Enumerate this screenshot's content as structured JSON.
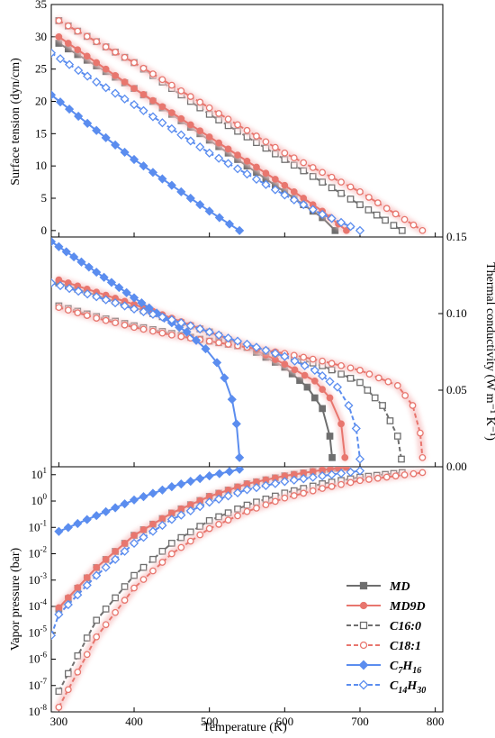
{
  "chart_data": [
    {
      "type": "line",
      "ylabel": "Surface tension (dyn/cm)",
      "ylim": [
        -1,
        35
      ],
      "xlim": [
        290,
        810
      ],
      "yticks": [
        "0",
        "5",
        "10",
        "15",
        "20",
        "25",
        "30",
        "35"
      ],
      "series": [
        {
          "name": "MD",
          "x": [
            300,
            400,
            500,
            600,
            650,
            667
          ],
          "y": [
            29,
            22,
            14,
            6,
            2,
            0
          ]
        },
        {
          "name": "MD9D",
          "x": [
            300,
            400,
            500,
            600,
            650,
            682
          ],
          "y": [
            30,
            22,
            14.5,
            7,
            3,
            0
          ]
        },
        {
          "name": "C16:0",
          "x": [
            300,
            400,
            500,
            600,
            700,
            756
          ],
          "y": [
            32.5,
            26,
            18,
            11,
            4,
            0
          ]
        },
        {
          "name": "C18:1",
          "x": [
            300,
            400,
            500,
            600,
            700,
            783
          ],
          "y": [
            32.5,
            26,
            19,
            12,
            6,
            0
          ]
        },
        {
          "name": "C7H16",
          "x": [
            290,
            350,
            400,
            450,
            500,
            540
          ],
          "y": [
            21,
            15.5,
            11,
            7,
            3,
            0
          ]
        },
        {
          "name": "C14H30",
          "x": [
            290,
            350,
            400,
            500,
            600,
            650,
            700
          ],
          "y": [
            27.5,
            23,
            19.5,
            12,
            5.5,
            2.5,
            0
          ]
        }
      ]
    },
    {
      "type": "line",
      "ylabel": "Thermal conductivity (W m⁻¹ K⁻¹)",
      "ylim": [
        0.0,
        0.15
      ],
      "xlim": [
        290,
        810
      ],
      "yticks": [
        "0.00",
        "0.05",
        "0.10",
        "0.15"
      ],
      "series": [
        {
          "name": "MD",
          "x": [
            300,
            350,
            400,
            450,
            500,
            550,
            600,
            630,
            650,
            660,
            663
          ],
          "y": [
            0.12,
            0.112,
            0.104,
            0.096,
            0.088,
            0.078,
            0.065,
            0.052,
            0.038,
            0.02,
            0.006
          ]
        },
        {
          "name": "MD9D",
          "x": [
            300,
            350,
            400,
            450,
            500,
            550,
            600,
            640,
            660,
            675,
            680
          ],
          "y": [
            0.122,
            0.114,
            0.106,
            0.097,
            0.088,
            0.079,
            0.067,
            0.056,
            0.045,
            0.028,
            0.006
          ]
        },
        {
          "name": "C16:0",
          "x": [
            300,
            350,
            400,
            450,
            500,
            550,
            600,
            650,
            700,
            730,
            750,
            755
          ],
          "y": [
            0.105,
            0.098,
            0.092,
            0.087,
            0.082,
            0.078,
            0.073,
            0.066,
            0.055,
            0.04,
            0.02,
            0.005
          ]
        },
        {
          "name": "C18:1",
          "x": [
            300,
            350,
            400,
            450,
            500,
            550,
            600,
            650,
            700,
            750,
            770,
            780,
            783
          ],
          "y": [
            0.104,
            0.097,
            0.091,
            0.086,
            0.082,
            0.078,
            0.074,
            0.069,
            0.063,
            0.053,
            0.04,
            0.022,
            0.006
          ]
        },
        {
          "name": "C7H16",
          "x": [
            290,
            320,
            350,
            380,
            410,
            440,
            470,
            495,
            510,
            520,
            530,
            536,
            540
          ],
          "y": [
            0.147,
            0.137,
            0.127,
            0.117,
            0.107,
            0.097,
            0.088,
            0.077,
            0.068,
            0.058,
            0.044,
            0.028,
            0.006
          ]
        },
        {
          "name": "C14H30",
          "x": [
            290,
            350,
            400,
            450,
            500,
            550,
            600,
            640,
            670,
            685,
            695,
            700
          ],
          "y": [
            0.12,
            0.111,
            0.103,
            0.096,
            0.088,
            0.08,
            0.072,
            0.063,
            0.052,
            0.04,
            0.025,
            0.005
          ]
        }
      ]
    },
    {
      "type": "line",
      "ylabel": "Vapor pressure (bar)",
      "xlabel": "Temperature (K)",
      "ylim_log10": [
        -8,
        1.3
      ],
      "xlim": [
        290,
        810
      ],
      "xticks": [
        "300",
        "400",
        "500",
        "600",
        "700",
        "800"
      ],
      "series": [
        {
          "name": "MD",
          "x": [
            300,
            350,
            400,
            450,
            500,
            550,
            600,
            650,
            680
          ],
          "y": [
            8e-05,
            0.003,
            0.05,
            0.35,
            1.5,
            4.5,
            9,
            15,
            19
          ]
        },
        {
          "name": "MD9D",
          "x": [
            300,
            350,
            400,
            450,
            500,
            550,
            600,
            650,
            682
          ],
          "y": [
            9e-05,
            0.003,
            0.05,
            0.35,
            1.5,
            4.5,
            9,
            15,
            19
          ]
        },
        {
          "name": "C16:0",
          "x": [
            300,
            350,
            400,
            450,
            500,
            550,
            600,
            650,
            700,
            756
          ],
          "y": [
            6e-08,
            3e-05,
            0.0015,
            0.025,
            0.18,
            0.7,
            2,
            4.5,
            8,
            12
          ]
        },
        {
          "name": "C18:1",
          "x": [
            300,
            350,
            400,
            450,
            500,
            550,
            600,
            650,
            700,
            783
          ],
          "y": [
            1.5e-08,
            7e-06,
            0.0005,
            0.01,
            0.09,
            0.4,
            1.3,
            3,
            6,
            12
          ]
        },
        {
          "name": "C7H16",
          "x": [
            300,
            350,
            400,
            450,
            500,
            540
          ],
          "y": [
            0.07,
            0.28,
            1.1,
            3.5,
            9,
            16
          ]
        },
        {
          "name": "C14H30",
          "x": [
            290,
            300,
            350,
            400,
            450,
            500,
            550,
            600,
            650,
            700
          ],
          "y": [
            8e-06,
            5e-05,
            0.0015,
            0.025,
            0.2,
            0.9,
            2.7,
            5.5,
            9,
            14
          ]
        }
      ],
      "legend": {
        "placement": "lower-right"
      }
    }
  ],
  "legend": [
    {
      "name": "MD",
      "base": "MD",
      "sub": "",
      "base2": "",
      "sub2": "",
      "color": "#6e6e6e",
      "marker": "square",
      "filled": true,
      "dashed": false
    },
    {
      "name": "MD9D",
      "base": "MD9D",
      "sub": "",
      "base2": "",
      "sub2": "",
      "color": "#e8766e",
      "marker": "circle",
      "filled": true,
      "dashed": false
    },
    {
      "name": "C16:0",
      "base": "C16:0",
      "sub": "",
      "base2": "",
      "sub2": "",
      "color": "#6e6e6e",
      "marker": "square",
      "filled": false,
      "dashed": true
    },
    {
      "name": "C18:1",
      "base": "C18:1",
      "sub": "",
      "base2": "",
      "sub2": "",
      "color": "#e8766e",
      "marker": "circle",
      "filled": false,
      "dashed": true
    },
    {
      "name": "C7H16",
      "base": "C",
      "sub": "7",
      "base2": "H",
      "sub2": "16",
      "color": "#5b8def",
      "marker": "diamond",
      "filled": true,
      "dashed": false
    },
    {
      "name": "C14H30",
      "base": "C",
      "sub": "14",
      "base2": "H",
      "sub2": "30",
      "color": "#5b8def",
      "marker": "diamond",
      "filled": false,
      "dashed": true
    }
  ]
}
